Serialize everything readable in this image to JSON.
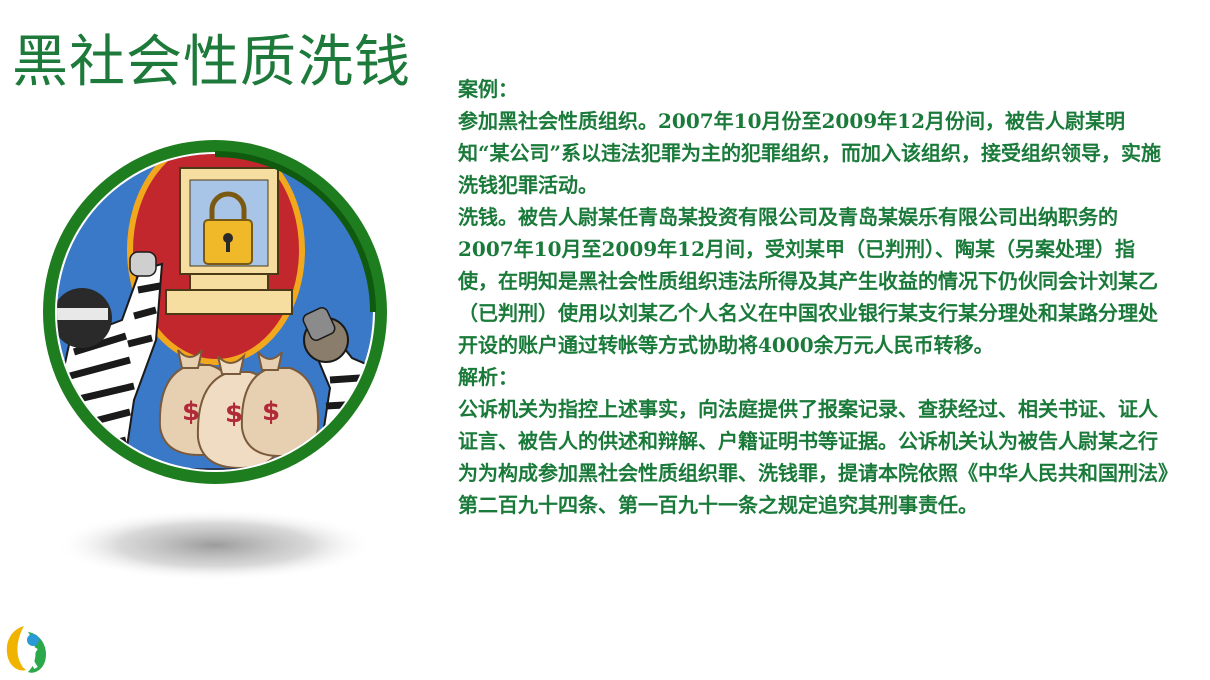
{
  "slide": {
    "title": "黑社会性质洗钱",
    "paragraphs": [
      "案例：",
      "参加黑社会性质组织。2007年10月份至2009年12月份间，被告人尉某明知“某公司”系以违法犯罪为主的犯罪组织，而加入该组织，接受组织领导，实施洗钱犯罪活动。",
      "洗钱。被告人尉某任青岛某投资有限公司及青岛某娱乐有限公司出纳职务的2007年10月至2009年12月间，受刘某甲（已判刑）、陶某（另案处理）指使，在明知是黑社会性质组织违法所得及其产生收益的情况下仍伙同会计刘某乙（已判刑）使用以刘某乙个人名义在中国农业银行某支行某分理处和某路分理处开设的账户通过转帐等方式协助将4000余万元人民币转移。",
      "解析：",
      "公诉机关为指控上述事实，向法庭提供了报案记录、查获经过、相关书证、证人证言、被告人的供述和辩解、户籍证明书等证据。公诉机关认为被告人尉某之行为为构成参加黑社会性质组织罪、洗钱罪，提请本院依照《中华人民共和国刑法》第二百九十四条、第一百九十一条之规定追究其刑事责任。"
    ]
  },
  "illustration": {
    "icon": "money-laundering-thieves-illustration",
    "money_symbol": "$"
  },
  "logo": {
    "icon": "company-logo-icon"
  },
  "colors": {
    "title": "#1d7a3a",
    "text": "#1a7a3a",
    "ring": "#1e7d1e",
    "disc_bg": "#3a78c8"
  }
}
